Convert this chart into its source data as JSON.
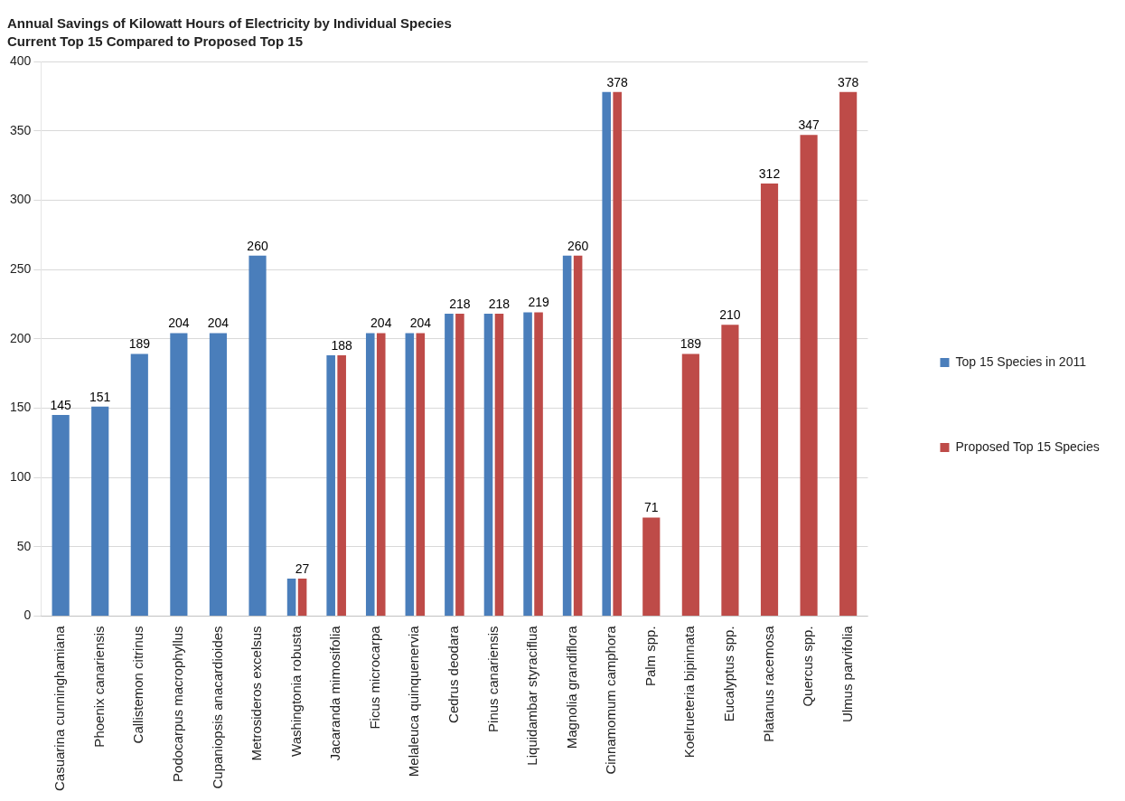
{
  "chart_data": {
    "type": "bar",
    "title": "Annual Savings of Kilowatt Hours of Electricity by Individual Species",
    "subtitle": "Current Top 15 Compared to Proposed Top 15",
    "categories": [
      "Casuarina cunninghamiana",
      "Phoenix canariensis",
      "Callistemon citrinus",
      "Podocarpus macrophyllus",
      "Cupaniopsis anacardioides",
      "Metrosideros excelsus",
      "Washingtonia robusta",
      "Jacaranda mimosifolia",
      "Ficus microcarpa",
      "Melaleuca quinquenervia",
      "Cedrus deodara",
      "Pinus canariensis",
      "Liquidambar styraciflua",
      "Magnolia grandiflora",
      "Cinnamomum camphora",
      "Palm spp.",
      "Koelrueteria bipinnata",
      "Eucalyptus spp.",
      "Platanus racemosa",
      "Quercus spp.",
      "Ulmus parvifolia"
    ],
    "series": [
      {
        "name": "Top 15 Species in 2011",
        "color": "#4a7ebb",
        "values": [
          145,
          151,
          189,
          204,
          204,
          260,
          27,
          188,
          204,
          204,
          218,
          218,
          219,
          260,
          378,
          null,
          null,
          null,
          null,
          null,
          null
        ],
        "value_labels": [
          "145",
          "151",
          "189",
          "204",
          "204",
          "260",
          null,
          null,
          null,
          null,
          null,
          null,
          null,
          null,
          null,
          null,
          null,
          null,
          null,
          null,
          null
        ]
      },
      {
        "name": "Proposed Top 15 Species",
        "color": "#be4b48",
        "values": [
          null,
          null,
          null,
          null,
          null,
          null,
          27,
          188,
          204,
          204,
          218,
          218,
          219,
          260,
          378,
          71,
          189,
          210,
          312,
          347,
          378
        ],
        "value_labels": [
          null,
          null,
          null,
          null,
          null,
          null,
          "27",
          "188",
          "204",
          "204",
          "218",
          "218",
          "219",
          "260",
          "378",
          "71",
          "189",
          "210",
          "312",
          "347",
          "378"
        ]
      }
    ],
    "ylim": [
      0,
      400
    ],
    "yticks": [
      0,
      50,
      100,
      150,
      200,
      250,
      300,
      350,
      400
    ],
    "grid": "y",
    "legend": "right"
  }
}
